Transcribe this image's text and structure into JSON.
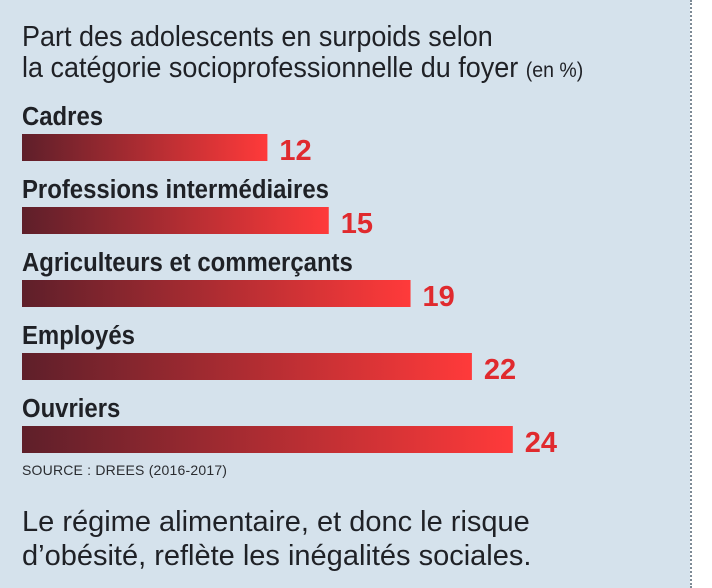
{
  "title": "Part des adolescents en surpoids selon",
  "title_line2": "la catégorie socioprofessionnelle du foyer",
  "unit_label": "(en %)",
  "source": "SOURCE : DREES (2016-2017)",
  "caption_line1": "Le régime alimentaire, et donc le risque",
  "caption_line2": "d’obésité, reflète les inégalités sociales.",
  "colors": {
    "background": "#d5e2ec",
    "bar_dark": "#5e1f2a",
    "bar_light": "#ff3a3a",
    "value_text": "#e02a2e",
    "text": "#1f2126"
  },
  "chart_data": {
    "type": "bar",
    "orientation": "horizontal",
    "categories": [
      "Cadres",
      "Professions intermédiaires",
      "Agriculteurs et commerçants",
      "Employés",
      "Ouvriers"
    ],
    "values": [
      12,
      15,
      19,
      22,
      24
    ],
    "value_labels": [
      "12",
      "15",
      "19",
      "22",
      "24"
    ],
    "grid": false
  }
}
